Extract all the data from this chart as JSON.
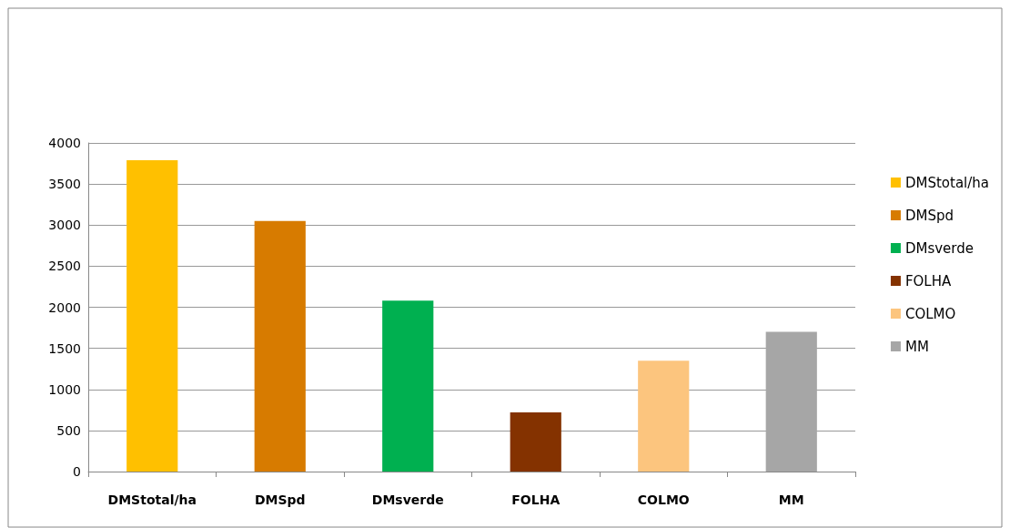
{
  "chart_data": {
    "type": "bar",
    "categories": [
      "DMStotal/ha",
      "DMSpd",
      "DMsverde",
      "FOLHA",
      "COLMO",
      "MM"
    ],
    "series": [
      {
        "name": "DMStotal/ha",
        "color": "#ffc000",
        "values": [
          3790,
          null,
          null,
          null,
          null,
          null
        ]
      },
      {
        "name": "DMSpd",
        "color": "#d77b00",
        "values": [
          null,
          3050,
          null,
          null,
          null,
          null
        ]
      },
      {
        "name": "DMsverde",
        "color": "#00b050",
        "values": [
          null,
          null,
          2080,
          null,
          null,
          null
        ]
      },
      {
        "name": "FOLHA",
        "color": "#843200",
        "values": [
          null,
          null,
          null,
          720,
          null,
          null
        ]
      },
      {
        "name": "COLMO",
        "color": "#fcc57e",
        "values": [
          null,
          null,
          null,
          null,
          1350,
          null
        ]
      },
      {
        "name": "MM",
        "color": "#a6a6a6",
        "values": [
          null,
          null,
          null,
          null,
          null,
          1700
        ]
      }
    ],
    "ylim": [
      0,
      4000
    ],
    "yticks": [
      0,
      500,
      1000,
      1500,
      2000,
      2500,
      3000,
      3500,
      4000
    ],
    "grid": "y",
    "legend": "right"
  }
}
